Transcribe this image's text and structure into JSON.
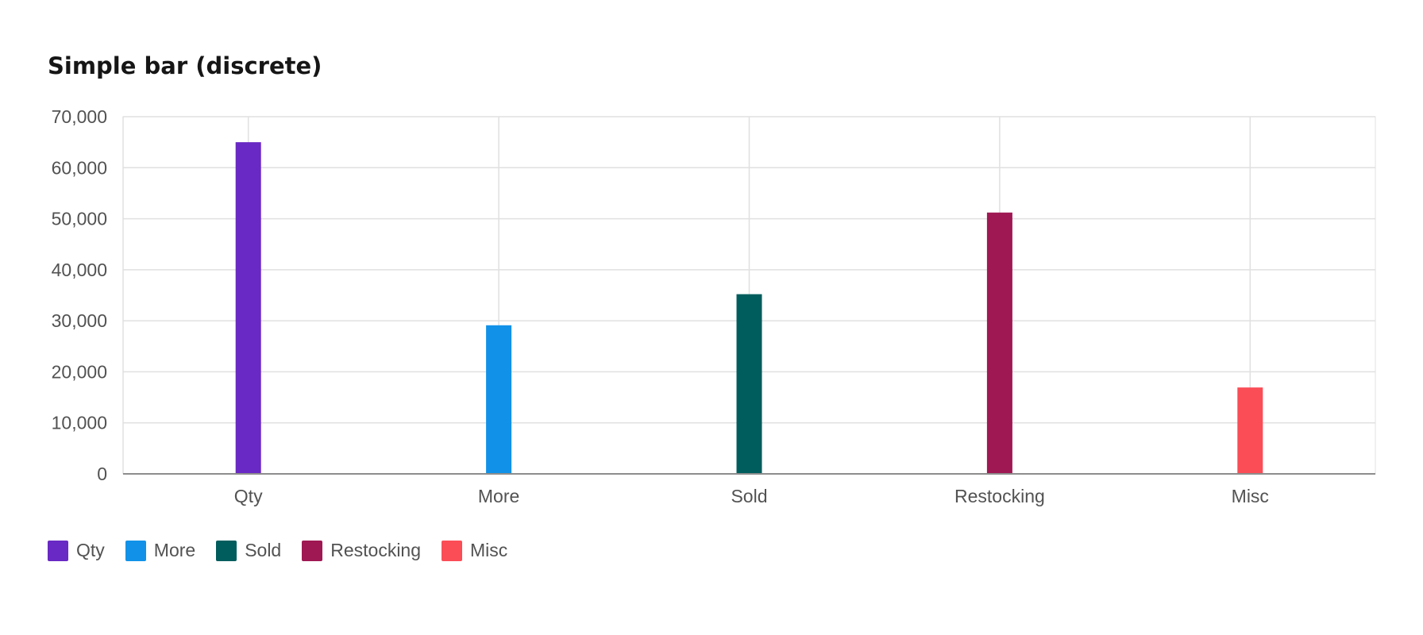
{
  "chart_data": {
    "type": "bar",
    "title": "Simple bar (discrete)",
    "categories": [
      "Qty",
      "More",
      "Sold",
      "Restocking",
      "Misc"
    ],
    "values": [
      65000,
      29123,
      35213,
      51213,
      16932
    ],
    "colors": [
      "#6929c4",
      "#1192e8",
      "#005d5d",
      "#9f1853",
      "#fa4d56"
    ],
    "xlabel": "",
    "ylabel": "",
    "ylim": [
      0,
      70000
    ],
    "yticks": [
      0,
      10000,
      20000,
      30000,
      40000,
      50000,
      60000,
      70000
    ],
    "grid": true,
    "legend": {
      "position": "bottom-left",
      "items": [
        {
          "label": "Qty",
          "color": "#6929c4"
        },
        {
          "label": "More",
          "color": "#1192e8"
        },
        {
          "label": "Sold",
          "color": "#005d5d"
        },
        {
          "label": "Restocking",
          "color": "#9f1853"
        },
        {
          "label": "Misc",
          "color": "#fa4d56"
        }
      ]
    }
  }
}
